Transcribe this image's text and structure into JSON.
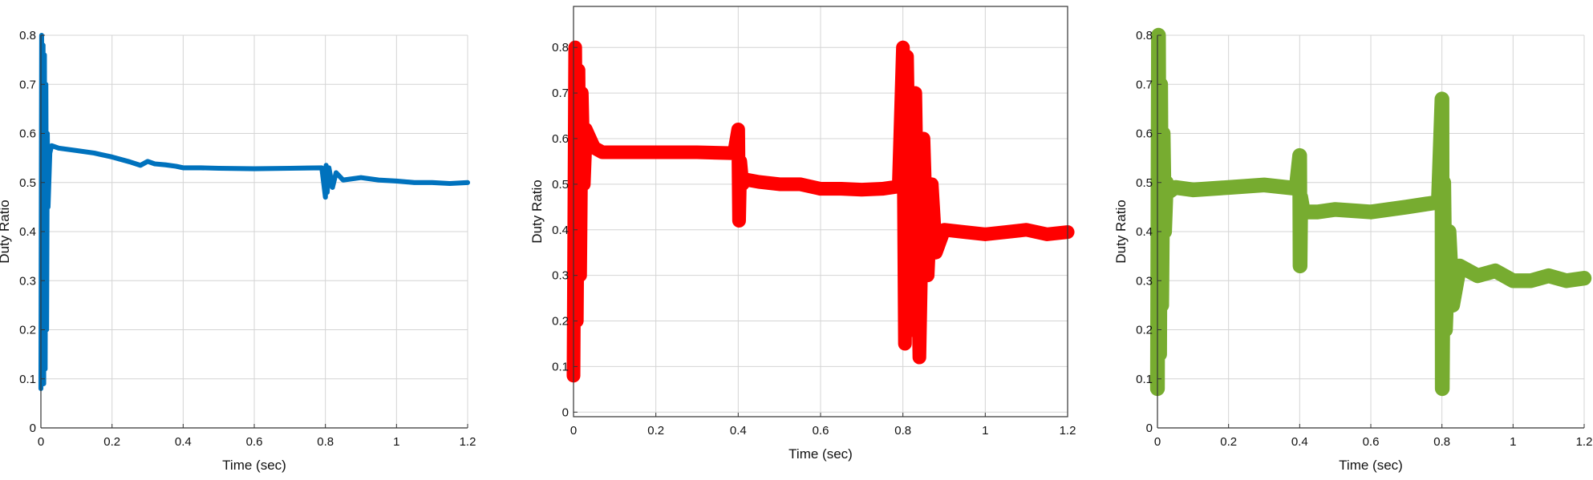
{
  "chart_data": [
    {
      "type": "line",
      "title": "",
      "xlabel": "Time (sec)",
      "ylabel": "Duty Ratio",
      "xlim": [
        0,
        1.2
      ],
      "ylim": [
        0,
        0.8
      ],
      "xticks": [
        "0",
        "0.2",
        "0.4",
        "0.6",
        "0.8",
        "1",
        "1.2"
      ],
      "yticks": [
        "0",
        "0.1",
        "0.2",
        "0.3",
        "0.4",
        "0.5",
        "0.6",
        "0.7",
        "0.8"
      ],
      "grid": true,
      "frame": "left-bottom",
      "color": "#0072BD",
      "series": [
        {
          "x": [
            0,
            0.002,
            0.004,
            0.006,
            0.008,
            0.01,
            0.012,
            0.014,
            0.016,
            0.018,
            0.02,
            0.025,
            0.03,
            0.05,
            0.1,
            0.15,
            0.2,
            0.25,
            0.28,
            0.3,
            0.32,
            0.35,
            0.38,
            0.4,
            0.45,
            0.5,
            0.6,
            0.7,
            0.79,
            0.8,
            0.802,
            0.805,
            0.81,
            0.82,
            0.83,
            0.85,
            0.9,
            0.95,
            1.0,
            1.05,
            1.1,
            1.15,
            1.2
          ],
          "y": [
            0.08,
            0.8,
            0.1,
            0.78,
            0.09,
            0.76,
            0.12,
            0.7,
            0.2,
            0.6,
            0.45,
            0.56,
            0.575,
            0.57,
            0.565,
            0.56,
            0.552,
            0.542,
            0.535,
            0.543,
            0.538,
            0.536,
            0.533,
            0.53,
            0.53,
            0.529,
            0.528,
            0.529,
            0.53,
            0.47,
            0.535,
            0.48,
            0.53,
            0.49,
            0.52,
            0.505,
            0.51,
            0.505,
            0.503,
            0.5,
            0.5,
            0.498,
            0.5
          ],
          "band": 0.01
        }
      ]
    },
    {
      "type": "line",
      "title": "",
      "xlabel": "Time (sec)",
      "ylabel": "Duty Ratio",
      "xlim": [
        0,
        1.2
      ],
      "ylim": [
        -0.01,
        0.89
      ],
      "xticks": [
        "0",
        "0.2",
        "0.4",
        "0.6",
        "0.8",
        "1",
        "1.2"
      ],
      "yticks": [
        "0",
        "0.1",
        "0.2",
        "0.3",
        "0.4",
        "0.5",
        "0.6",
        "0.7",
        "0.8"
      ],
      "grid": true,
      "frame": "box",
      "color": "#FF0000",
      "series": [
        {
          "x": [
            0,
            0.004,
            0.008,
            0.012,
            0.016,
            0.02,
            0.025,
            0.03,
            0.04,
            0.05,
            0.07,
            0.1,
            0.2,
            0.3,
            0.39,
            0.4,
            0.402,
            0.405,
            0.41,
            0.42,
            0.45,
            0.5,
            0.55,
            0.6,
            0.65,
            0.7,
            0.75,
            0.79,
            0.8,
            0.805,
            0.81,
            0.82,
            0.83,
            0.84,
            0.85,
            0.86,
            0.87,
            0.88,
            0.9,
            0.95,
            1.0,
            1.05,
            1.1,
            1.15,
            1.2
          ],
          "y": [
            0.08,
            0.8,
            0.2,
            0.75,
            0.3,
            0.7,
            0.5,
            0.62,
            0.6,
            0.58,
            0.57,
            0.57,
            0.57,
            0.57,
            0.568,
            0.62,
            0.42,
            0.55,
            0.5,
            0.51,
            0.505,
            0.5,
            0.5,
            0.49,
            0.49,
            0.488,
            0.49,
            0.495,
            0.8,
            0.15,
            0.78,
            0.18,
            0.7,
            0.12,
            0.6,
            0.3,
            0.5,
            0.35,
            0.4,
            0.395,
            0.39,
            0.395,
            0.4,
            0.39,
            0.395
          ],
          "band": 0.03
        }
      ]
    },
    {
      "type": "line",
      "title": "",
      "xlabel": "Time (sec)",
      "ylabel": "Duty Ratio",
      "xlim": [
        0,
        1.2
      ],
      "ylim": [
        0,
        0.8
      ],
      "xticks": [
        "0",
        "0.2",
        "0.4",
        "0.6",
        "0.8",
        "1",
        "1.2"
      ],
      "yticks": [
        "0",
        "0.1",
        "0.2",
        "0.3",
        "0.4",
        "0.5",
        "0.6",
        "0.7",
        "0.8"
      ],
      "grid": true,
      "frame": "left-bottom",
      "color": "#77AC30",
      "series": [
        {
          "x": [
            0,
            0.003,
            0.006,
            0.009,
            0.012,
            0.016,
            0.02,
            0.025,
            0.03,
            0.05,
            0.1,
            0.2,
            0.3,
            0.39,
            0.4,
            0.401,
            0.403,
            0.41,
            0.45,
            0.5,
            0.6,
            0.7,
            0.79,
            0.8,
            0.801,
            0.805,
            0.81,
            0.82,
            0.83,
            0.85,
            0.9,
            0.95,
            1.0,
            1.05,
            1.1,
            1.15,
            1.2
          ],
          "y": [
            0.08,
            0.8,
            0.15,
            0.7,
            0.25,
            0.6,
            0.4,
            0.5,
            0.48,
            0.49,
            0.485,
            0.49,
            0.495,
            0.488,
            0.555,
            0.33,
            0.47,
            0.44,
            0.44,
            0.445,
            0.44,
            0.45,
            0.46,
            0.67,
            0.08,
            0.5,
            0.2,
            0.4,
            0.25,
            0.33,
            0.31,
            0.32,
            0.3,
            0.3,
            0.31,
            0.3,
            0.305
          ],
          "band": 0.03
        }
      ]
    }
  ]
}
